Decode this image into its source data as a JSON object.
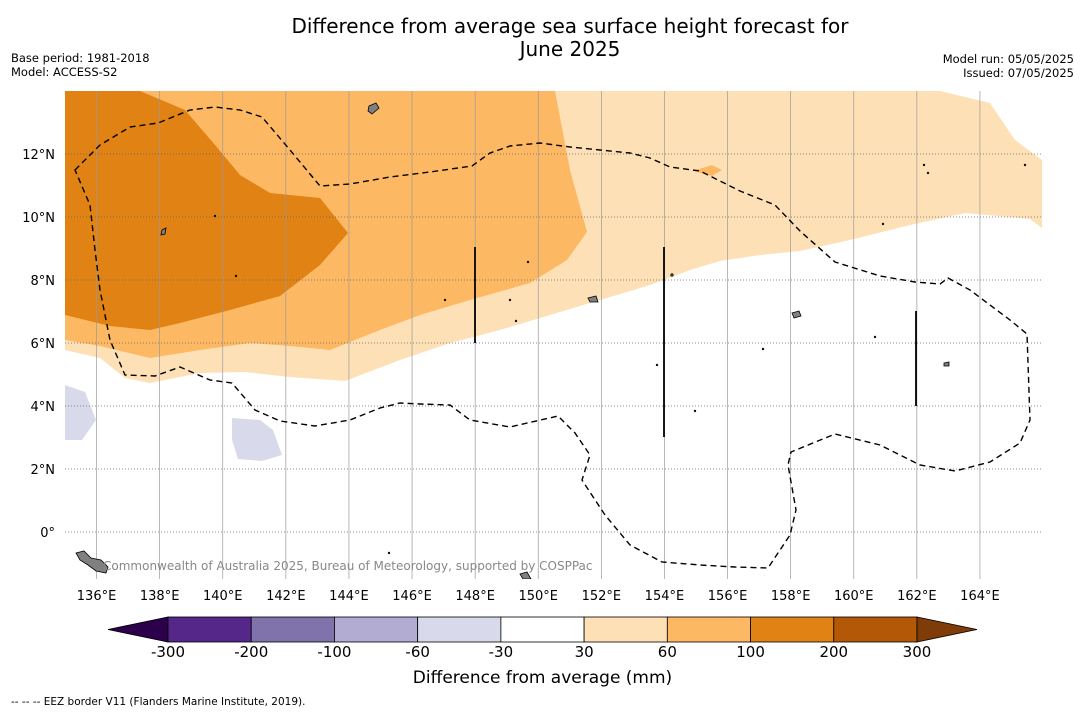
{
  "title": {
    "line1": "Difference from average sea surface height forecast for",
    "line2": "June 2025"
  },
  "meta": {
    "base_period": "Base period: 1981-2018",
    "model": "Model: ACCESS-S2",
    "model_run": "Model run: 05/05/2025",
    "issued": "Issued: 07/05/2025"
  },
  "map": {
    "credit": "Commonwealth of Australia 2025, Bureau of Meteorology, supported by COSPPac",
    "lon_labels": [
      "136°E",
      "138°E",
      "140°E",
      "142°E",
      "144°E",
      "146°E",
      "148°E",
      "150°E",
      "152°E",
      "154°E",
      "156°E",
      "158°E",
      "160°E",
      "162°E",
      "164°E"
    ],
    "lat_labels": [
      "12°N",
      "10°N",
      "8°N",
      "6°N",
      "4°N",
      "2°N",
      "0°"
    ],
    "lon_range": [
      135,
      166
    ],
    "lat_range": [
      -1.5,
      14
    ]
  },
  "colorbar": {
    "title": "Difference from average (mm)",
    "tick_labels": [
      "-300",
      "-200",
      "-100",
      "-60",
      "-30",
      "30",
      "60",
      "100",
      "200",
      "300"
    ],
    "colors": {
      "below_min": "#2d004b",
      "c1": "#542788",
      "c2": "#8073ac",
      "c3": "#b2abd2",
      "c4": "#d8daeb",
      "c5": "#ffffff",
      "c6": "#fee0b6",
      "c7": "#fdb863",
      "c8": "#e08214",
      "c9": "#b35806",
      "above_max": "#7f3b08"
    }
  },
  "footnote": "--  --  -- EEZ border V11 (Flanders Marine Institute, 2019)."
}
